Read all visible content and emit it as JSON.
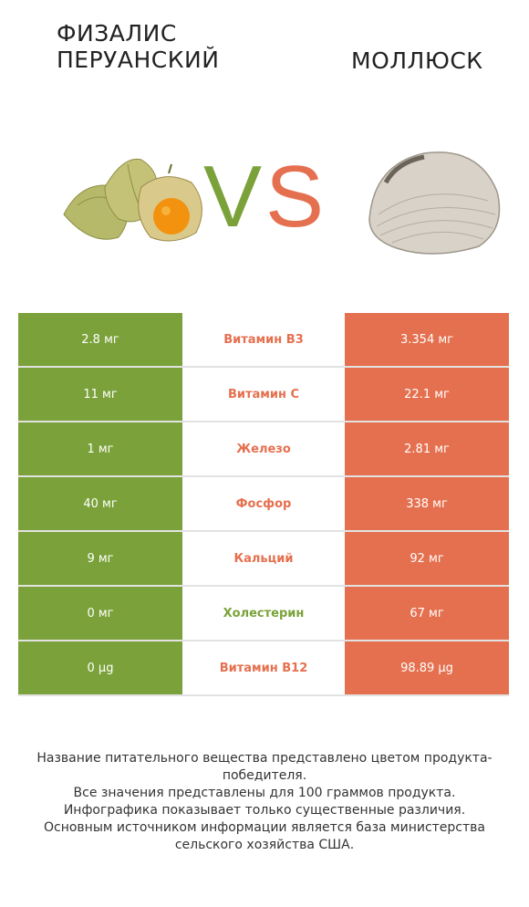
{
  "header": {
    "left_title_line1": "ФИЗАЛИС",
    "left_title_line2": "ПЕРУАНСКИЙ",
    "right_title": "МОЛЛЮСК",
    "vs_v": "V",
    "vs_s": "S"
  },
  "colors": {
    "left": "#7ba23a",
    "right": "#e5704f"
  },
  "rows": [
    {
      "left": "2.8 мг",
      "name": "Витамин B3",
      "right": "3.354 мг",
      "winner": "right"
    },
    {
      "left": "11 мг",
      "name": "Витамин C",
      "right": "22.1 мг",
      "winner": "right"
    },
    {
      "left": "1 мг",
      "name": "Железо",
      "right": "2.81 мг",
      "winner": "right"
    },
    {
      "left": "40 мг",
      "name": "Фосфор",
      "right": "338 мг",
      "winner": "right"
    },
    {
      "left": "9 мг",
      "name": "Кальций",
      "right": "92 мг",
      "winner": "right"
    },
    {
      "left": "0 мг",
      "name": "Холестерин",
      "right": "67 мг",
      "winner": "left"
    },
    {
      "left": "0 µg",
      "name": "Витамин B12",
      "right": "98.89 µg",
      "winner": "right"
    }
  ],
  "footer": [
    "Название питательного вещества представлено цветом продукта-победителя.",
    "Все значения представлены для 100 граммов продукта.",
    "Инфографика показывает только существенные различия.",
    "Основным источником информации является база министерства сельского хозяйства США."
  ]
}
